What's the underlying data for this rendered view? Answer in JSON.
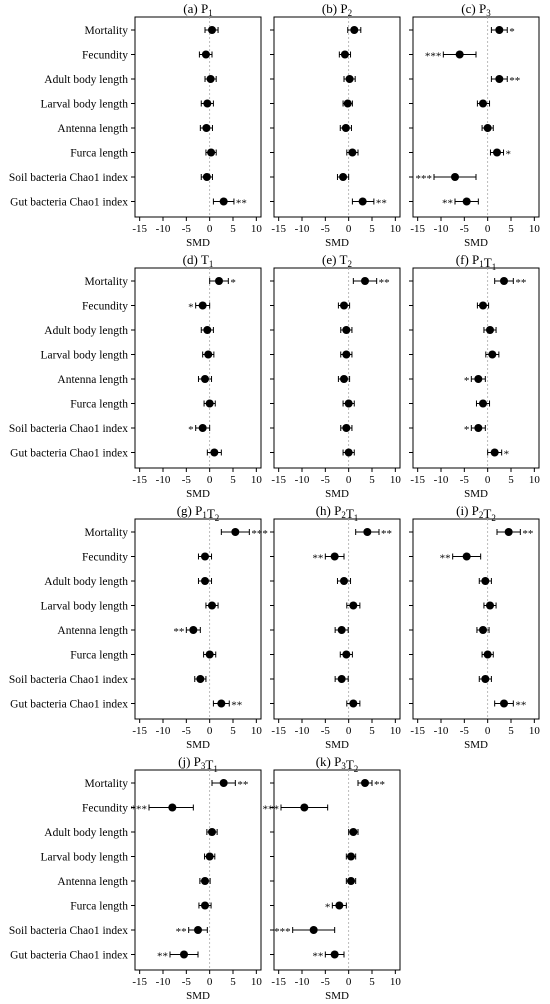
{
  "figure": {
    "xlabel": "SMD",
    "xticks": [
      -15,
      -10,
      -5,
      0,
      5,
      10
    ],
    "xlim": [
      -16,
      11
    ],
    "reference_line_at": 0,
    "marker_color": "#000000",
    "ref_line_color": "#aaaaaa"
  },
  "row_labels": [
    "Mortality",
    "Fecundity",
    "Adult body length",
    "Larval body length",
    "Antenna length",
    "Furca length",
    "Soil bacteria Chao1 index",
    "Gut bacteria Chao1 index"
  ],
  "chart_data": [
    {
      "type": "forest",
      "id": "a",
      "title_prefix": "(a)",
      "title_parts": [
        [
          "P",
          "1"
        ]
      ],
      "categories": [
        "Mortality",
        "Fecundity",
        "Adult body length",
        "Larval body length",
        "Antenna length",
        "Furca length",
        "Soil bacteria Chao1 index",
        "Gut bacteria Chao1 index"
      ],
      "x": [
        0.5,
        -0.8,
        0.2,
        -0.5,
        -0.7,
        0.3,
        -0.6,
        3.0
      ],
      "ci_low": [
        -1.0,
        -2.2,
        -1.0,
        -1.8,
        -2.0,
        -0.8,
        -1.8,
        0.8
      ],
      "ci_high": [
        1.8,
        0.5,
        1.4,
        0.8,
        0.6,
        1.4,
        0.6,
        5.2
      ],
      "sig": [
        "",
        "",
        "",
        "",
        "",
        "",
        "",
        "**"
      ]
    },
    {
      "type": "forest",
      "id": "b",
      "title_prefix": "(b)",
      "title_parts": [
        [
          "P",
          "2"
        ]
      ],
      "categories": [
        "Mortality",
        "Fecundity",
        "Adult body length",
        "Larval body length",
        "Antenna length",
        "Furca length",
        "Soil bacteria Chao1 index",
        "Gut bacteria Chao1 index"
      ],
      "x": [
        1.2,
        -0.8,
        0.2,
        -0.2,
        -0.6,
        0.8,
        -1.2,
        3.0
      ],
      "ci_low": [
        -0.2,
        -2.0,
        -1.0,
        -1.2,
        -1.8,
        -0.4,
        -2.4,
        0.8
      ],
      "ci_high": [
        2.6,
        0.4,
        1.4,
        0.8,
        0.6,
        2.0,
        0.0,
        5.4
      ],
      "sig": [
        "",
        "",
        "",
        "",
        "",
        "",
        "",
        "**"
      ]
    },
    {
      "type": "forest",
      "id": "c",
      "title_prefix": "(c)",
      "title_parts": [
        [
          "P",
          "3"
        ]
      ],
      "categories": [
        "Mortality",
        "Fecundity",
        "Adult body length",
        "Larval body length",
        "Antenna length",
        "Furca length",
        "Soil bacteria Chao1 index",
        "Gut bacteria Chao1 index"
      ],
      "x": [
        2.5,
        -6.0,
        2.5,
        -1.0,
        0.0,
        2.0,
        -7.0,
        -4.5
      ],
      "ci_low": [
        0.8,
        -9.5,
        0.8,
        -2.2,
        -1.2,
        0.6,
        -11.5,
        -7.0
      ],
      "ci_high": [
        4.2,
        -2.5,
        4.2,
        0.4,
        1.2,
        3.4,
        -2.5,
        -2.0
      ],
      "sig": [
        "*",
        "***",
        "**",
        "",
        "",
        "*",
        "***",
        "**"
      ]
    },
    {
      "type": "forest",
      "id": "d",
      "title_prefix": "(d)",
      "title_parts": [
        [
          "T",
          "1"
        ]
      ],
      "categories": [
        "Mortality",
        "Fecundity",
        "Adult body length",
        "Larval body length",
        "Antenna length",
        "Furca length",
        "Soil bacteria Chao1 index",
        "Gut bacteria Chao1 index"
      ],
      "x": [
        2.0,
        -1.5,
        -0.5,
        -0.3,
        -1.0,
        0.0,
        -1.5,
        1.0
      ],
      "ci_low": [
        0.0,
        -3.0,
        -1.8,
        -1.5,
        -2.4,
        -1.2,
        -3.0,
        -0.5
      ],
      "ci_high": [
        4.0,
        0.0,
        0.8,
        0.9,
        0.4,
        1.2,
        0.0,
        2.5
      ],
      "sig": [
        "*",
        "*",
        "",
        "",
        "",
        "",
        "*",
        ""
      ]
    },
    {
      "type": "forest",
      "id": "e",
      "title_prefix": "(e)",
      "title_parts": [
        [
          "T",
          "2"
        ]
      ],
      "categories": [
        "Mortality",
        "Fecundity",
        "Adult body length",
        "Larval body length",
        "Antenna length",
        "Furca length",
        "Soil bacteria Chao1 index",
        "Gut bacteria Chao1 index"
      ],
      "x": [
        3.5,
        -1.0,
        -0.5,
        -0.5,
        -1.0,
        0.0,
        -0.5,
        0.0
      ],
      "ci_low": [
        1.0,
        -2.2,
        -1.7,
        -1.7,
        -2.2,
        -1.2,
        -1.7,
        -1.2
      ],
      "ci_high": [
        6.0,
        0.2,
        0.7,
        0.7,
        0.2,
        1.2,
        0.7,
        1.2
      ],
      "sig": [
        "**",
        "",
        "",
        "",
        "",
        "",
        "",
        ""
      ]
    },
    {
      "type": "forest",
      "id": "f",
      "title_prefix": "(f)",
      "title_parts": [
        [
          "P",
          "1"
        ],
        [
          "T",
          "1"
        ]
      ],
      "categories": [
        "Mortality",
        "Fecundity",
        "Adult body length",
        "Larval body length",
        "Antenna length",
        "Furca length",
        "Soil bacteria Chao1 index",
        "Gut bacteria Chao1 index"
      ],
      "x": [
        3.5,
        -1.0,
        0.5,
        1.0,
        -2.0,
        -1.0,
        -2.0,
        1.5
      ],
      "ci_low": [
        1.5,
        -2.2,
        -0.8,
        -0.4,
        -3.5,
        -2.4,
        -3.5,
        0.0
      ],
      "ci_high": [
        5.5,
        0.2,
        1.8,
        2.4,
        -0.5,
        0.4,
        -0.5,
        3.0
      ],
      "sig": [
        "**",
        "",
        "",
        "",
        "*",
        "",
        "*",
        "*"
      ]
    },
    {
      "type": "forest",
      "id": "g",
      "title_prefix": "(g)",
      "title_parts": [
        [
          "P",
          "1"
        ],
        [
          "T",
          "2"
        ]
      ],
      "categories": [
        "Mortality",
        "Fecundity",
        "Adult body length",
        "Larval body length",
        "Antenna length",
        "Furca length",
        "Soil bacteria Chao1 index",
        "Gut bacteria Chao1 index"
      ],
      "x": [
        5.5,
        -1.0,
        -1.0,
        0.5,
        -3.5,
        0.0,
        -2.0,
        2.5
      ],
      "ci_low": [
        2.5,
        -2.4,
        -2.4,
        -0.8,
        -5.0,
        -1.3,
        -3.2,
        0.8
      ],
      "ci_high": [
        8.5,
        0.4,
        0.4,
        1.8,
        -2.0,
        1.3,
        -0.8,
        4.2
      ],
      "sig": [
        "***",
        "",
        "",
        "",
        "**",
        "",
        "",
        "**"
      ]
    },
    {
      "type": "forest",
      "id": "h",
      "title_prefix": "(h)",
      "title_parts": [
        [
          "P",
          "2"
        ],
        [
          "T",
          "1"
        ]
      ],
      "categories": [
        "Mortality",
        "Fecundity",
        "Adult body length",
        "Larval body length",
        "Antenna length",
        "Furca length",
        "Soil bacteria Chao1 index",
        "Gut bacteria Chao1 index"
      ],
      "x": [
        4.0,
        -3.0,
        -1.0,
        1.0,
        -1.5,
        -0.5,
        -1.5,
        1.0
      ],
      "ci_low": [
        1.5,
        -5.0,
        -2.4,
        -0.4,
        -2.9,
        -1.8,
        -2.9,
        -0.4
      ],
      "ci_high": [
        6.5,
        -1.0,
        0.4,
        2.4,
        -0.1,
        0.8,
        -0.1,
        2.4
      ],
      "sig": [
        "**",
        "**",
        "",
        "",
        "",
        "",
        "",
        ""
      ]
    },
    {
      "type": "forest",
      "id": "i",
      "title_prefix": "(i)",
      "title_parts": [
        [
          "P",
          "2"
        ],
        [
          "T",
          "2"
        ]
      ],
      "categories": [
        "Mortality",
        "Fecundity",
        "Adult body length",
        "Larval body length",
        "Antenna length",
        "Furca length",
        "Soil bacteria Chao1 index",
        "Gut bacteria Chao1 index"
      ],
      "x": [
        4.5,
        -4.5,
        -0.5,
        0.5,
        -1.0,
        0.0,
        -0.5,
        3.5
      ],
      "ci_low": [
        2.0,
        -7.5,
        -1.8,
        -0.8,
        -2.3,
        -1.2,
        -1.8,
        1.5
      ],
      "ci_high": [
        7.0,
        -1.5,
        0.8,
        1.8,
        0.3,
        1.2,
        0.8,
        5.5
      ],
      "sig": [
        "**",
        "**",
        "",
        "",
        "",
        "",
        "",
        "**"
      ]
    },
    {
      "type": "forest",
      "id": "j",
      "title_prefix": "(j)",
      "title_parts": [
        [
          "P",
          "3"
        ],
        [
          "T",
          "1"
        ]
      ],
      "categories": [
        "Mortality",
        "Fecundity",
        "Adult body length",
        "Larval body length",
        "Antenna length",
        "Furca length",
        "Soil bacteria Chao1 index",
        "Gut bacteria Chao1 index"
      ],
      "x": [
        3.0,
        -8.0,
        0.5,
        0.0,
        -1.0,
        -1.0,
        -2.5,
        -5.5
      ],
      "ci_low": [
        0.5,
        -13.0,
        -0.6,
        -1.1,
        -2.1,
        -2.3,
        -4.5,
        -8.5
      ],
      "ci_high": [
        5.5,
        -3.5,
        1.6,
        1.1,
        0.1,
        0.3,
        -0.5,
        -2.5
      ],
      "sig": [
        "**",
        "***",
        "",
        "",
        "",
        "",
        "**",
        "**"
      ]
    },
    {
      "type": "forest",
      "id": "k",
      "title_prefix": "(k)",
      "title_parts": [
        [
          "P",
          "3"
        ],
        [
          "T",
          "2"
        ]
      ],
      "categories": [
        "Mortality",
        "Fecundity",
        "Adult body length",
        "Larval body length",
        "Antenna length",
        "Furca length",
        "Soil bacteria Chao1 index",
        "Gut bacteria Chao1 index"
      ],
      "x": [
        3.5,
        -9.5,
        1.0,
        0.5,
        0.5,
        -2.0,
        -7.5,
        -3.0
      ],
      "ci_low": [
        2.0,
        -14.5,
        0.0,
        -0.5,
        -0.5,
        -3.5,
        -12.0,
        -5.0
      ],
      "ci_high": [
        5.0,
        -4.5,
        2.0,
        1.5,
        1.5,
        -0.5,
        -3.0,
        -1.0
      ],
      "sig": [
        "**",
        "***",
        "",
        "",
        "",
        "*",
        "***",
        "**"
      ]
    }
  ]
}
